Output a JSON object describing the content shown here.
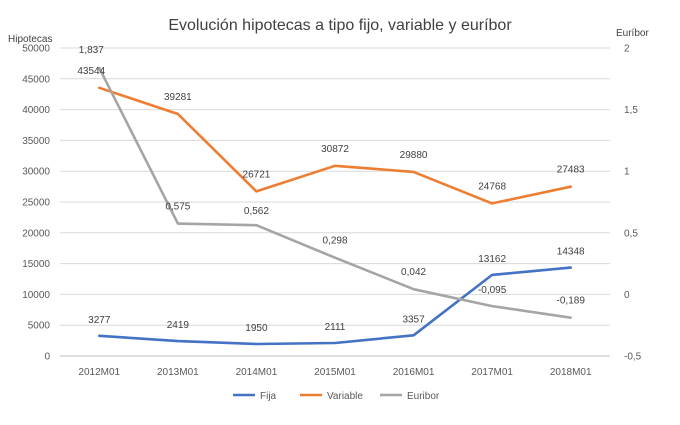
{
  "chart_data": {
    "type": "line",
    "title": "Evolución hipotecas a tipo fijo, variable y euríbor",
    "ylabel": "Hipotecas",
    "y2label": "Euríbor",
    "ylim": [
      0,
      50000
    ],
    "y2lim": [
      -0.5,
      2
    ],
    "yticks": [
      "0",
      "5000",
      "10000",
      "15000",
      "20000",
      "25000",
      "30000",
      "35000",
      "40000",
      "45000",
      "50000"
    ],
    "y2ticks": [
      "-0,5",
      "0",
      "0,5",
      "1",
      "1,5",
      "2"
    ],
    "categories": [
      "2012M01",
      "2013M01",
      "2014M01",
      "2015M01",
      "2016M01",
      "2017M01",
      "2018M01"
    ],
    "grid": true,
    "legend_position": "bottom",
    "series": [
      {
        "name": "Fija",
        "axis": "left",
        "color": "#4472C4",
        "values": [
          3277,
          2419,
          1950,
          2111,
          3357,
          13162,
          14348
        ],
        "labels": [
          "3277",
          "2419",
          "1950",
          "2111",
          "3357",
          "13162",
          "14348"
        ]
      },
      {
        "name": "Variable",
        "axis": "left",
        "color": "#ED7D31",
        "values": [
          43544,
          39281,
          26721,
          30872,
          29880,
          24768,
          27483
        ],
        "labels": [
          "43544",
          "39281",
          "26721",
          "30872",
          "29880",
          "24768",
          "27483"
        ]
      },
      {
        "name": "Euribor",
        "axis": "right",
        "color": "#A5A5A5",
        "values": [
          1.837,
          0.575,
          0.562,
          0.298,
          0.042,
          -0.095,
          -0.189
        ],
        "labels": [
          "1,837",
          "0,575",
          "0,562",
          "0,298",
          "0,042",
          "-0,095",
          "-0,189"
        ]
      }
    ]
  }
}
